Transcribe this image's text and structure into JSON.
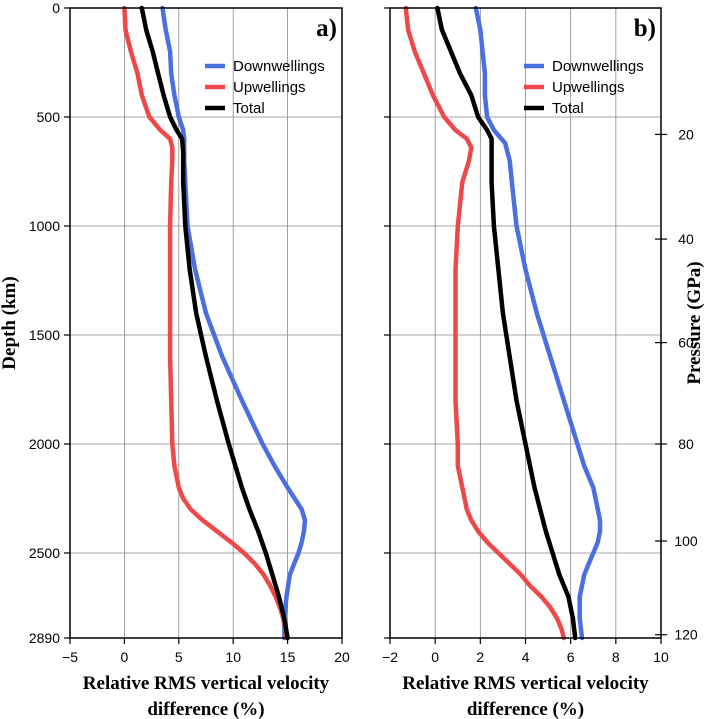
{
  "chart_data": [
    {
      "type": "line",
      "panel_label": "a)",
      "xlabel_line1": "Relative RMS vertical velocity",
      "xlabel_line2": "difference (%)",
      "ylabel": "Depth (km)",
      "xlim": [
        -5,
        20
      ],
      "ylim": [
        2890,
        0
      ],
      "x_ticks": [
        "−5",
        "0",
        "5",
        "10",
        "15",
        "20"
      ],
      "x_tick_values": [
        -5,
        0,
        5,
        10,
        15,
        20
      ],
      "y_ticks": [
        "0",
        "500",
        "1000",
        "1500",
        "2000",
        "2500",
        "2890"
      ],
      "y_tick_values": [
        0,
        500,
        1000,
        1500,
        2000,
        2500,
        2890
      ],
      "grid": true,
      "legend_position": "top-right",
      "series": [
        {
          "name": "Downwellings",
          "color": "#4a6fe3",
          "depth": [
            0,
            100,
            200,
            300,
            400,
            500,
            560,
            600,
            660,
            700,
            800,
            1000,
            1200,
            1400,
            1600,
            1800,
            2000,
            2100,
            2200,
            2300,
            2350,
            2400,
            2450,
            2500,
            2550,
            2600,
            2700,
            2800,
            2890
          ],
          "values": [
            3.5,
            3.8,
            4.2,
            4.3,
            4.6,
            5.0,
            5.4,
            5.5,
            5.5,
            5.5,
            5.6,
            5.8,
            6.5,
            7.5,
            9.0,
            10.8,
            12.7,
            13.8,
            15.0,
            16.3,
            16.6,
            16.5,
            16.3,
            16.0,
            15.6,
            15.2,
            14.9,
            14.7,
            14.7
          ]
        },
        {
          "name": "Upwellings",
          "color": "#f04848",
          "depth": [
            0,
            100,
            200,
            300,
            400,
            500,
            560,
            600,
            640,
            700,
            800,
            1000,
            1200,
            1400,
            1600,
            1800,
            2000,
            2100,
            2200,
            2250,
            2300,
            2350,
            2400,
            2450,
            2500,
            2550,
            2600,
            2650,
            2700,
            2750,
            2800,
            2850,
            2890
          ],
          "values": [
            0.0,
            0.1,
            0.6,
            1.2,
            1.6,
            2.3,
            3.3,
            4.2,
            4.4,
            4.4,
            4.3,
            4.2,
            4.2,
            4.2,
            4.2,
            4.3,
            4.4,
            4.6,
            5.0,
            5.4,
            6.1,
            7.2,
            8.5,
            9.8,
            11.0,
            12.0,
            12.8,
            13.4,
            13.9,
            14.3,
            14.6,
            14.8,
            14.9
          ]
        },
        {
          "name": "Total",
          "color": "#000000",
          "depth": [
            0,
            100,
            200,
            300,
            400,
            500,
            560,
            600,
            660,
            700,
            800,
            1000,
            1200,
            1400,
            1600,
            1800,
            2000,
            2200,
            2300,
            2400,
            2500,
            2600,
            2700,
            2800,
            2890
          ],
          "values": [
            1.6,
            2.0,
            2.6,
            3.1,
            3.6,
            4.2,
            4.8,
            5.3,
            5.4,
            5.4,
            5.4,
            5.6,
            6.0,
            6.6,
            7.5,
            8.5,
            9.6,
            10.8,
            11.5,
            12.3,
            13.0,
            13.6,
            14.2,
            14.7,
            15.0
          ]
        }
      ]
    },
    {
      "type": "line",
      "panel_label": "b)",
      "xlabel_line1": "Relative RMS vertical velocity",
      "xlabel_line2": "difference (%)",
      "y2label": "Pressure (GPa)",
      "xlim": [
        -2,
        10
      ],
      "ylim": [
        2890,
        0
      ],
      "x_ticks": [
        "−2",
        "0",
        "2",
        "4",
        "6",
        "8",
        "10"
      ],
      "x_tick_values": [
        -2,
        0,
        2,
        4,
        6,
        8,
        10
      ],
      "pressure_ticks": [
        "20",
        "40",
        "60",
        "80",
        "100",
        "120"
      ],
      "pressure_tick_depths": [
        580,
        1060,
        1535,
        2000,
        2445,
        2875
      ],
      "grid": true,
      "legend_position": "top-right",
      "series": [
        {
          "name": "Downwellings",
          "color": "#4a6fe3",
          "depth": [
            0,
            100,
            200,
            300,
            400,
            500,
            560,
            620,
            660,
            700,
            800,
            1000,
            1200,
            1400,
            1600,
            1800,
            2000,
            2100,
            2200,
            2300,
            2350,
            2400,
            2450,
            2500,
            2550,
            2600,
            2650,
            2700,
            2800,
            2890
          ],
          "values": [
            1.8,
            2.0,
            2.1,
            2.2,
            2.2,
            2.3,
            2.6,
            3.1,
            3.2,
            3.3,
            3.4,
            3.6,
            4.0,
            4.5,
            5.1,
            5.7,
            6.3,
            6.6,
            7.0,
            7.2,
            7.3,
            7.3,
            7.2,
            7.0,
            6.8,
            6.6,
            6.5,
            6.4,
            6.4,
            6.5
          ]
        },
        {
          "name": "Upwellings",
          "color": "#f04848",
          "depth": [
            0,
            100,
            200,
            300,
            400,
            500,
            560,
            600,
            640,
            700,
            800,
            1000,
            1200,
            1400,
            1600,
            1800,
            2000,
            2100,
            2200,
            2300,
            2350,
            2400,
            2450,
            2500,
            2550,
            2600,
            2650,
            2700,
            2750,
            2800,
            2850,
            2890
          ],
          "values": [
            -1.3,
            -1.2,
            -0.9,
            -0.5,
            -0.1,
            0.4,
            0.9,
            1.4,
            1.6,
            1.5,
            1.2,
            1.0,
            0.9,
            0.9,
            0.9,
            0.9,
            1.0,
            1.0,
            1.2,
            1.4,
            1.6,
            1.9,
            2.3,
            2.8,
            3.3,
            3.8,
            4.2,
            4.7,
            5.1,
            5.4,
            5.6,
            5.7
          ]
        },
        {
          "name": "Total",
          "color": "#000000",
          "depth": [
            0,
            100,
            200,
            300,
            400,
            500,
            560,
            600,
            660,
            700,
            800,
            1000,
            1200,
            1400,
            1600,
            1800,
            2000,
            2200,
            2400,
            2500,
            2600,
            2700,
            2800,
            2890
          ],
          "values": [
            0.1,
            0.3,
            0.7,
            1.1,
            1.6,
            1.9,
            2.3,
            2.5,
            2.5,
            2.5,
            2.5,
            2.6,
            2.8,
            3.0,
            3.3,
            3.6,
            4.0,
            4.4,
            4.9,
            5.2,
            5.5,
            5.9,
            6.1,
            6.2
          ]
        }
      ]
    }
  ]
}
